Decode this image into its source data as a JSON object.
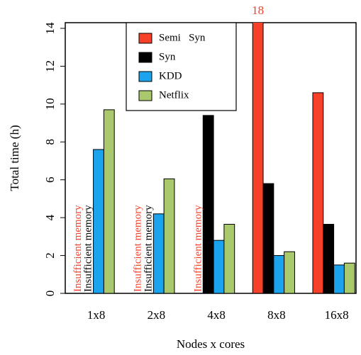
{
  "chart_data": {
    "type": "bar",
    "x_label": "Nodes x cores",
    "y_label": "Total time (h)",
    "categories": [
      "1x8",
      "2x8",
      "4x8",
      "8x8",
      "16x8"
    ],
    "series": [
      {
        "name": "Semi   Syn",
        "color": "#f6402a",
        "values": [
          null,
          null,
          null,
          18,
          10.6
        ],
        "value_labels": [
          null,
          null,
          null,
          "18",
          null
        ],
        "missing_label": "Insufficient memory"
      },
      {
        "name": "Syn",
        "color": "#000000",
        "values": [
          null,
          null,
          9.4,
          5.8,
          3.65
        ],
        "missing_label": "Insufficient memory"
      },
      {
        "name": "KDD",
        "color": "#1ba3ee",
        "values": [
          7.6,
          4.2,
          2.8,
          2.0,
          1.5
        ]
      },
      {
        "name": "Netflix",
        "color": "#a9c96c",
        "values": [
          9.7,
          6.05,
          3.65,
          2.2,
          1.6
        ]
      }
    ],
    "ylim": [
      0,
      14.3
    ],
    "yticks": [
      0,
      2,
      4,
      6,
      8,
      10,
      12,
      14
    ],
    "legend": "top"
  }
}
